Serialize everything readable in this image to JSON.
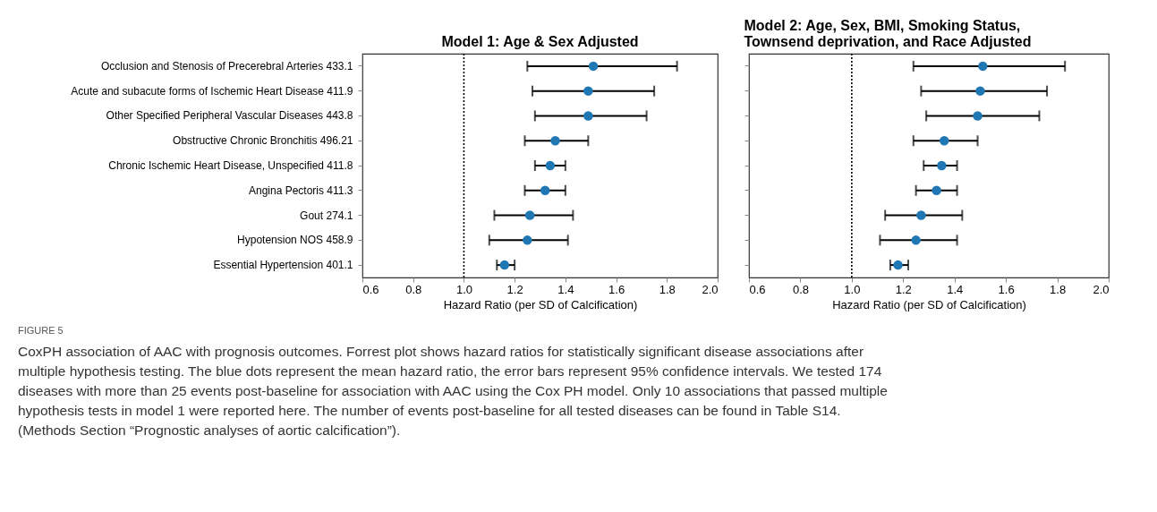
{
  "chart_data": [
    {
      "type": "scatter",
      "title": "Model 1: Age & Sex Adjusted",
      "xlabel": "Hazard Ratio (per SD of Calcification)",
      "categories": [
        "Occlusion and Stenosis of Precerebral Arteries 433.1",
        "Acute and subacute forms of Ischemic Heart Disease 411.9",
        "Other Specified Peripheral Vascular Diseases 443.8",
        "Obstructive Chronic Bronchitis 496.21",
        "Chronic Ischemic Heart Disease, Unspecified 411.8",
        "Angina Pectoris 411.3",
        "Gout 274.1",
        "Hypotension NOS 458.9",
        "Essential Hypertension 401.1"
      ],
      "orientation": "horizontal",
      "series": [
        {
          "color": "#1f77b4",
          "values": [
            1.51,
            1.49,
            1.49,
            1.36,
            1.34,
            1.32,
            1.26,
            1.25,
            1.16
          ],
          "errors": [
            [
              1.25,
              1.84
            ],
            [
              1.27,
              1.75
            ],
            [
              1.28,
              1.72
            ],
            [
              1.24,
              1.49
            ],
            [
              1.28,
              1.4
            ],
            [
              1.24,
              1.4
            ],
            [
              1.12,
              1.43
            ],
            [
              1.1,
              1.41
            ],
            [
              1.13,
              1.2
            ]
          ]
        }
      ],
      "xlim": [
        0.6,
        2.0
      ],
      "xticks": [
        {
          "value": 0.6,
          "label": "0.6"
        },
        {
          "value": 0.8,
          "label": "0.8"
        },
        {
          "value": 1.0,
          "label": "1.0"
        },
        {
          "value": 1.2,
          "label": "1.2"
        },
        {
          "value": 1.4,
          "label": "1.4"
        },
        {
          "value": 1.6,
          "label": "1.6"
        },
        {
          "value": 1.8,
          "label": "1.8"
        },
        {
          "value": 2.0,
          "label": "2.0"
        }
      ],
      "ref_lines": [
        {
          "axis": "x",
          "value": 1.0,
          "color": "#000000",
          "line_style": "dotted"
        }
      ],
      "marker": "circle",
      "grid": false,
      "annotations": [
        "FIGURE 5",
        "CoxPH association of AAC with prognosis outcomes. Forrest plot shows hazard ratios for statistically significant disease associations after multiple hypothesis testing. The blue dots represent the mean hazard ratio, the error bars represent 95% confidence intervals. We tested 174 diseases with more than 25 events post-baseline for association with AAC using the Cox PH model. Only 10 associations that passed multiple hypothesis tests in model 1 were reported here. The number of events post-baseline for all tested diseases can be found in Table S14. (Methods Section “Prognostic analyses of aortic calcification”)."
      ]
    },
    {
      "type": "scatter",
      "title": "Model 2: Age, Sex, BMI, Smoking Status, Townsend deprivation, and Race Adjusted",
      "xlabel": "Hazard Ratio (per SD of Calcification)",
      "categories": [
        null,
        null,
        null,
        null,
        null,
        null,
        null,
        null,
        null
      ],
      "orientation": "horizontal",
      "series": [
        {
          "color": "#1f77b4",
          "values": [
            1.51,
            1.5,
            1.49,
            1.36,
            1.35,
            1.33,
            1.27,
            1.25,
            1.18
          ],
          "errors": [
            [
              1.24,
              1.83
            ],
            [
              1.27,
              1.76
            ],
            [
              1.29,
              1.73
            ],
            [
              1.24,
              1.49
            ],
            [
              1.28,
              1.41
            ],
            [
              1.25,
              1.41
            ],
            [
              1.13,
              1.43
            ],
            [
              1.11,
              1.41
            ],
            [
              1.15,
              1.22
            ]
          ]
        }
      ],
      "xlim": [
        0.6,
        2.0
      ],
      "xticks": [
        {
          "value": 0.6,
          "label": "0.6"
        },
        {
          "value": 0.8,
          "label": "0.8"
        },
        {
          "value": 1.0,
          "label": "1.0"
        },
        {
          "value": 1.2,
          "label": "1.2"
        },
        {
          "value": 1.4,
          "label": "1.4"
        },
        {
          "value": 1.6,
          "label": "1.6"
        },
        {
          "value": 1.8,
          "label": "1.8"
        },
        {
          "value": 2.0,
          "label": "2.0"
        }
      ],
      "ref_lines": [
        {
          "axis": "x",
          "value": 1.0,
          "color": "#000000",
          "line_style": "dotted"
        }
      ],
      "marker": "circle",
      "grid": false,
      "tick_labels": "x"
    }
  ]
}
